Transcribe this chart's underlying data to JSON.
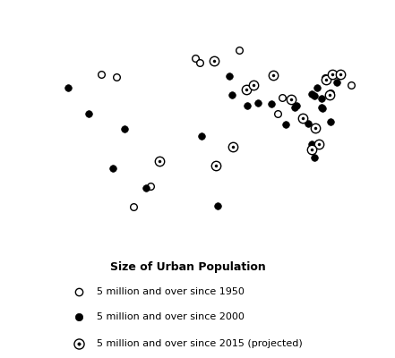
{
  "title": "Size of Urban Population",
  "legend_labels": [
    "5 million and over since 1950",
    "5 million and over since 2000",
    "5 million and over since 2015 (projected)"
  ],
  "map_land_color": "#aaaaaa",
  "map_ocean_color": "#ffffff",
  "cities_1950": [
    [
      -74.0,
      40.7
    ],
    [
      -87.6,
      41.9
    ],
    [
      -43.2,
      -22.9
    ],
    [
      -58.4,
      -34.6
    ],
    [
      -2.2,
      51.5
    ],
    [
      2.3,
      48.9
    ],
    [
      37.6,
      55.8
    ],
    [
      139.7,
      35.7
    ],
    [
      121.5,
      31.2
    ],
    [
      116.4,
      39.9
    ],
    [
      72.8,
      19.1
    ],
    [
      77.2,
      28.6
    ]
  ],
  "cities_2000": [
    [
      -118.2,
      34.1
    ],
    [
      -99.1,
      19.4
    ],
    [
      -46.6,
      -23.5
    ],
    [
      -66.9,
      10.5
    ],
    [
      -77.0,
      -12.1
    ],
    [
      28.9,
      41.0
    ],
    [
      31.2,
      30.1
    ],
    [
      3.4,
      6.5
    ],
    [
      18.1,
      -33.9
    ],
    [
      32.6,
      0.3
    ],
    [
      45.3,
      23.7
    ],
    [
      55.3,
      25.3
    ],
    [
      67.0,
      24.9
    ],
    [
      80.3,
      13.1
    ],
    [
      88.4,
      22.6
    ],
    [
      90.4,
      23.7
    ],
    [
      100.5,
      13.7
    ],
    [
      103.8,
      1.4
    ],
    [
      106.8,
      -6.2
    ],
    [
      120.9,
      14.6
    ],
    [
      126.9,
      37.6
    ],
    [
      113.3,
      23.1
    ],
    [
      104.1,
      30.6
    ],
    [
      108.9,
      34.3
    ],
    [
      106.5,
      29.6
    ],
    [
      112.9,
      28.2
    ],
    [
      114.1,
      22.3
    ]
  ],
  "cities_2015": [
    [
      15.0,
      50.0
    ],
    [
      44.4,
      33.3
    ],
    [
      51.4,
      35.7
    ],
    [
      17.0,
      -11.0
    ],
    [
      32.6,
      0.3
    ],
    [
      69.2,
      41.3
    ],
    [
      85.3,
      27.7
    ],
    [
      96.2,
      16.9
    ],
    [
      107.6,
      10.8
    ],
    [
      110.4,
      1.6
    ],
    [
      117.2,
      39.1
    ],
    [
      120.2,
      30.3
    ],
    [
      123.0,
      41.8
    ],
    [
      -34.9,
      -8.1
    ],
    [
      130.4,
      42.0
    ],
    [
      103.8,
      -1.3
    ]
  ],
  "figsize": [
    4.41,
    4.0
  ],
  "dpi": 100
}
